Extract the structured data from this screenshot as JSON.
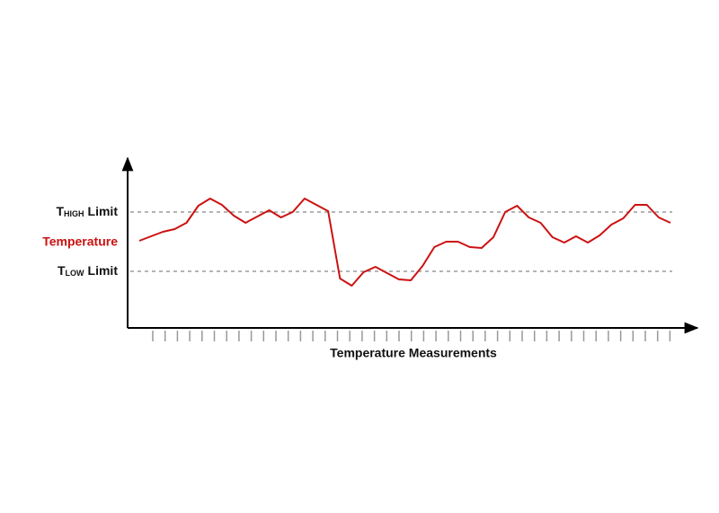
{
  "chart_data": {
    "type": "line",
    "x_label": "Temperature Measurements",
    "series_label": "Temperature",
    "color": "#cc1111",
    "ylim": [
      0,
      185
    ],
    "high_limit": {
      "symbol": "T",
      "subscript": "HIGH",
      "text": "Limit",
      "value": 129
    },
    "low_limit": {
      "symbol": "T",
      "subscript": "LOW",
      "text": "Limit",
      "value": 63
    },
    "values": [
      97,
      102,
      107,
      110,
      117,
      136,
      144,
      137,
      125,
      117,
      124,
      131,
      123,
      129,
      144,
      137,
      130,
      55,
      47,
      62,
      68,
      61,
      54,
      53,
      69,
      90,
      96,
      96,
      90,
      89,
      101,
      129,
      136,
      123,
      117,
      101,
      95,
      102,
      95,
      103,
      115,
      122,
      137,
      137,
      123,
      117
    ]
  }
}
